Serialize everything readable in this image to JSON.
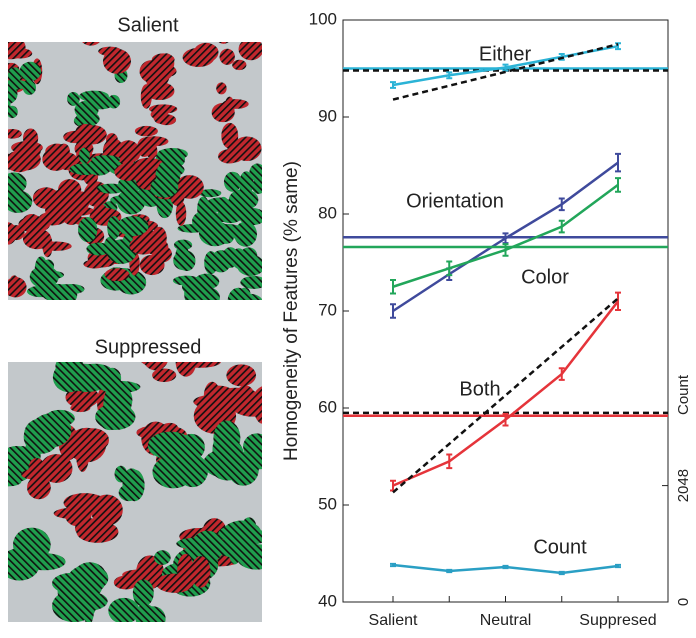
{
  "images": [
    {
      "title": "Salient"
    },
    {
      "title": "Suppressed"
    }
  ],
  "chart_data": {
    "type": "line",
    "ylabel": "Homogeneity of Features (% same)",
    "y2label": "Count",
    "categories": [
      "Salient",
      null,
      "Neutral",
      null,
      "Suppresed"
    ],
    "ylim": [
      40,
      100
    ],
    "yticks": [
      40,
      50,
      60,
      70,
      80,
      90,
      100
    ],
    "y2lim": [
      0,
      10240
    ],
    "y2ticks": [
      0,
      2048
    ],
    "series": [
      {
        "name": "Either",
        "color": "#2bb3d6",
        "values": [
          93.3,
          94.3,
          95.1,
          96.2,
          97.3
        ],
        "errors": [
          0.3,
          0.3,
          0.3,
          0.3,
          0.3
        ],
        "baseline": 95.0,
        "fit_baseline": 94.8,
        "fit": [
          91.8,
          97.5
        ]
      },
      {
        "name": "Orientation",
        "color": "#3f4a9c",
        "values": [
          70.0,
          73.8,
          77.5,
          81.0,
          85.3
        ],
        "errors": [
          0.7,
          0.6,
          0.5,
          0.6,
          0.9
        ],
        "baseline": 77.6
      },
      {
        "name": "Color",
        "color": "#22a65a",
        "values": [
          72.5,
          74.4,
          76.3,
          78.7,
          83.0
        ],
        "errors": [
          0.7,
          0.7,
          0.6,
          0.6,
          0.7
        ],
        "baseline": 76.6
      },
      {
        "name": "Both",
        "color": "#e5343a",
        "values": [
          52.0,
          54.5,
          58.8,
          63.5,
          71.0
        ],
        "errors": [
          0.5,
          0.7,
          0.6,
          0.6,
          0.9
        ],
        "baseline": 59.2,
        "fit_baseline": 59.5,
        "fit": [
          51.3,
          71.3
        ]
      },
      {
        "name": "Count",
        "color": "#2a9fc4",
        "axis": "y2",
        "values": [
          651,
          545,
          616,
          510,
          633
        ],
        "errors": [
          20,
          20,
          20,
          20,
          20
        ]
      }
    ]
  }
}
